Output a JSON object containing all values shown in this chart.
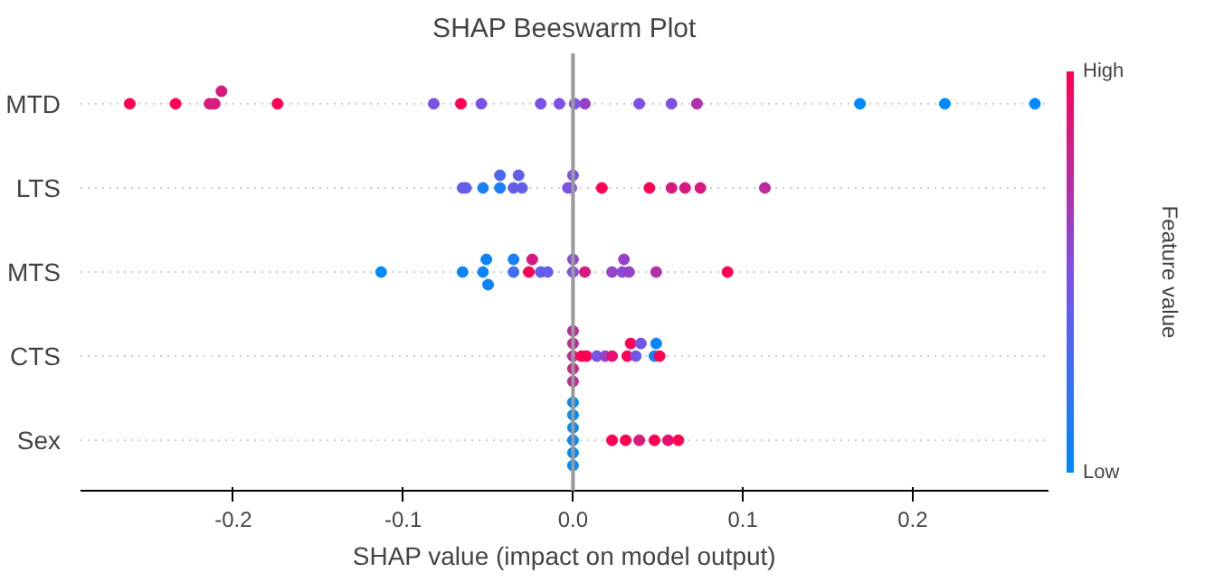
{
  "chart_data": {
    "type": "scatter",
    "title": "SHAP Beeswarm Plot",
    "xlabel": "SHAP value (impact on model output)",
    "orientation": "horizontal",
    "categories": [
      "MTD",
      "LTS",
      "MTS",
      "CTS",
      "Sex"
    ],
    "xlim": [
      -0.29,
      0.28
    ],
    "xticks": [
      -0.2,
      -0.1,
      {
        "value": 0,
        "label": "0.0"
      },
      0.1,
      0.2
    ],
    "grid": "y",
    "ref_lines": [
      {
        "axis": "x",
        "value": 0,
        "color": "#999999"
      }
    ],
    "clabel": "Feature value",
    "clim": [
      0,
      1
    ],
    "cticks": [
      {
        "value": 0,
        "label": "Low"
      },
      {
        "value": 1,
        "label": "High"
      }
    ],
    "series": [
      {
        "x": [
          "MTD",
          "MTD",
          "MTD",
          "MTD",
          "MTD",
          "MTD",
          "MTD",
          "MTD",
          "MTD",
          "MTD",
          "MTD",
          "MTD",
          "MTD",
          "MTD",
          "MTD",
          "MTD",
          "MTD",
          "MTD",
          "MTD"
        ],
        "values": [
          -0.261,
          -0.234,
          -0.214,
          -0.211,
          -0.207,
          -0.174,
          -0.082,
          -0.066,
          -0.054,
          -0.019,
          -0.008,
          0.001,
          0.007,
          0.039,
          0.058,
          0.073,
          0.169,
          0.219,
          0.272
        ],
        "cvalues": [
          1,
          1,
          0.85,
          0.85,
          0.85,
          1,
          0.5,
          1,
          0.5,
          0.5,
          0.5,
          0.5,
          0.6,
          0.5,
          0.5,
          0.7,
          0,
          0,
          0
        ],
        "colors": [
          "#ff0052",
          "#ff0052",
          "#d8197e",
          "#d8197e",
          "#d8197e",
          "#ff0052",
          "#7c52e6",
          "#ff0052",
          "#7c52e6",
          "#7c52e6",
          "#7c52e6",
          "#7c52e6",
          "#9642c8",
          "#7c52e6",
          "#7c52e6",
          "#b031ab",
          "#008afb",
          "#008afb",
          "#008afb"
        ]
      },
      {
        "x": [
          "LTS",
          "LTS",
          "LTS",
          "LTS",
          "LTS",
          "LTS",
          "LTS",
          "LTS",
          "LTS",
          "LTS",
          "LTS",
          "LTS",
          "LTS",
          "LTS",
          "LTS",
          "LTS",
          "LTS"
        ],
        "values": [
          -0.065,
          -0.063,
          -0.053,
          -0.043,
          -0.043,
          -0.035,
          -0.032,
          -0.03,
          -0.003,
          -0.001,
          0.0,
          0.017,
          0.045,
          0.058,
          0.066,
          0.075,
          0.113
        ],
        "cvalues": [
          0.4,
          0.4,
          0.1,
          0.1,
          0.3,
          0.4,
          0.4,
          0.4,
          0.5,
          0.5,
          0.5,
          1,
          1,
          0.85,
          0.85,
          0.85,
          0.75
        ],
        "colors": [
          "#635dea",
          "#635dea",
          "#197ff7",
          "#197ff7",
          "#4a68ee",
          "#635dea",
          "#635dea",
          "#635dea",
          "#7c52e6",
          "#7c52e6",
          "#7c52e6",
          "#ff0052",
          "#ff0052",
          "#d8197e",
          "#d8197e",
          "#d8197e",
          "#be299c"
        ]
      },
      {
        "x": [
          "MTS",
          "MTS",
          "MTS",
          "MTS",
          "MTS",
          "MTS",
          "MTS",
          "MTS",
          "MTS",
          "MTS",
          "MTS",
          "MTS",
          "MTS",
          "MTS",
          "MTS",
          "MTS",
          "MTS",
          "MTS",
          "MTS",
          "MTS"
        ],
        "values": [
          -0.113,
          -0.065,
          -0.053,
          -0.051,
          -0.05,
          -0.035,
          -0.035,
          -0.026,
          -0.024,
          -0.019,
          -0.015,
          0.0,
          0.0,
          0.007,
          0.023,
          0.029,
          0.03,
          0.033,
          0.049,
          0.091
        ],
        "cvalues": [
          0,
          0.05,
          0.05,
          0.05,
          0.05,
          0.25,
          0.1,
          1,
          0.85,
          0.4,
          0.4,
          0.5,
          0.55,
          0.85,
          0.6,
          0.55,
          0.6,
          0.6,
          0.7,
          1
        ],
        "colors": [
          "#008afb",
          "#0c84f9",
          "#0c84f9",
          "#0c84f9",
          "#0c84f9",
          "#3e6ef1",
          "#197ff7",
          "#ff0052",
          "#d8197e",
          "#635dea",
          "#635dea",
          "#7c52e6",
          "#894ad7",
          "#d8197e",
          "#9642c8",
          "#894ad7",
          "#9642c8",
          "#9642c8",
          "#b031ab",
          "#ff0052"
        ]
      },
      {
        "x": [
          "CTS",
          "CTS",
          "CTS",
          "CTS",
          "CTS",
          "CTS",
          "CTS",
          "CTS",
          "CTS",
          "CTS",
          "CTS",
          "CTS",
          "CTS",
          "CTS",
          "CTS",
          "CTS",
          "CTS"
        ],
        "values": [
          0.0,
          0.0,
          0.0,
          0.0,
          0.0,
          0.005,
          0.008,
          0.014,
          0.019,
          0.023,
          0.032,
          0.034,
          0.037,
          0.04,
          0.048,
          0.049,
          0.051
        ],
        "cvalues": [
          0.75,
          0.75,
          0.8,
          0.75,
          0.75,
          1,
          1,
          0.45,
          0.6,
          0.9,
          1,
          1,
          0.45,
          0.45,
          0.05,
          0.05,
          1
        ],
        "colors": [
          "#be299c",
          "#be299c",
          "#cb218d",
          "#be299c",
          "#be299c",
          "#ff0052",
          "#ff0052",
          "#7057e8",
          "#9642c8",
          "#e51070",
          "#ff0052",
          "#ff0052",
          "#7057e8",
          "#7057e8",
          "#0c84f9",
          "#0c84f9",
          "#ff0052"
        ]
      },
      {
        "x": [
          "Sex",
          "Sex",
          "Sex",
          "Sex",
          "Sex",
          "Sex",
          "Sex",
          "Sex",
          "Sex",
          "Sex",
          "Sex",
          "Sex"
        ],
        "values": [
          0.0,
          0.0,
          0.0,
          0.0,
          0.0,
          0.0,
          0.023,
          0.031,
          0.039,
          0.048,
          0.056,
          0.062
        ],
        "cvalues": [
          0,
          0,
          0,
          0,
          0,
          0,
          1,
          1,
          0.85,
          1,
          0.9,
          1
        ],
        "colors": [
          "#008afb",
          "#008afb",
          "#008afb",
          "#008afb",
          "#008afb",
          "#008afb",
          "#ff0052",
          "#ff0052",
          "#d8197e",
          "#ff0052",
          "#e51070",
          "#ff0052"
        ]
      }
    ]
  }
}
